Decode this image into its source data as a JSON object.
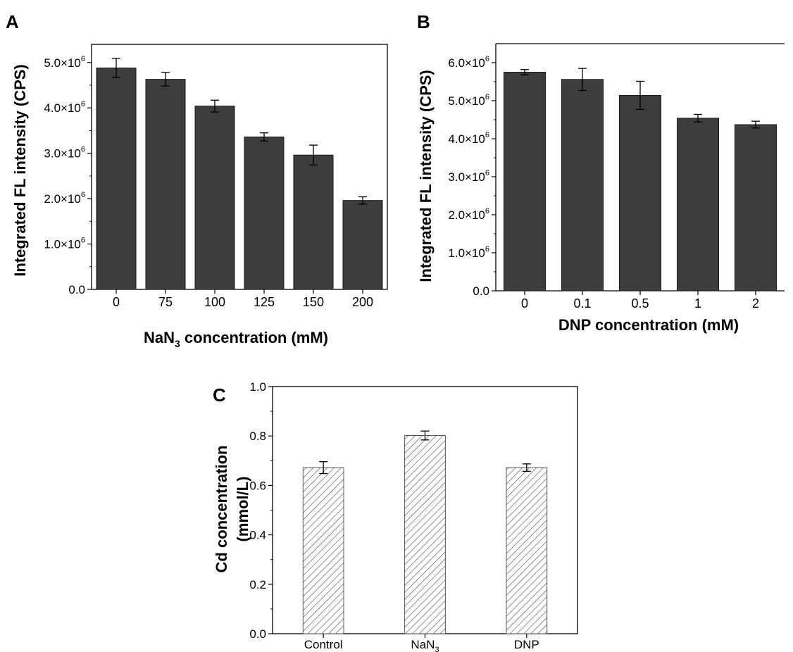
{
  "panels": [
    {
      "letter": "A",
      "chart_data": {
        "type": "bar",
        "categories": [
          "0",
          "75",
          "100",
          "125",
          "150",
          "200"
        ],
        "values": [
          4880000,
          4630000,
          4040000,
          3360000,
          2960000,
          1960000
        ],
        "errors": [
          210000,
          150000,
          130000,
          90000,
          220000,
          80000
        ],
        "xlabel_main": "NaN",
        "xlabel_sub": "3",
        "xlabel_rest": " concentration (mM)",
        "ylabel": "Integrated FL intensity (CPS)",
        "ylim": [
          0,
          5400000
        ],
        "yticks": [
          {
            "value": 0,
            "mant": "0.0",
            "sci": false
          },
          {
            "value": 1000000,
            "mant": "1.0×10",
            "exp": "6",
            "sci": true
          },
          {
            "value": 2000000,
            "mant": "2.0×10",
            "exp": "6",
            "sci": true
          },
          {
            "value": 3000000,
            "mant": "3.0×10",
            "exp": "6",
            "sci": true
          },
          {
            "value": 4000000,
            "mant": "4.0×10",
            "exp": "6",
            "sci": true
          },
          {
            "value": 5000000,
            "mant": "5.0×10",
            "exp": "6",
            "sci": true
          }
        ],
        "bar_color": "#3d3d3d",
        "grid": false
      }
    },
    {
      "letter": "B",
      "chart_data": {
        "type": "bar",
        "categories": [
          "0",
          "0.1",
          "0.5",
          "1",
          "2"
        ],
        "values": [
          5750000,
          5560000,
          5140000,
          4540000,
          4370000
        ],
        "errors": [
          70000,
          290000,
          370000,
          100000,
          90000
        ],
        "xlabel_main": "DNP concentration (mM)",
        "xlabel_sub": "",
        "xlabel_rest": "",
        "ylabel": "Integrated FL intensity (CPS)",
        "ylim": [
          0,
          6500000
        ],
        "yticks": [
          {
            "value": 0,
            "mant": "0.0",
            "sci": false
          },
          {
            "value": 1000000,
            "mant": "1.0×10",
            "exp": "6",
            "sci": true
          },
          {
            "value": 2000000,
            "mant": "2.0×10",
            "exp": "6",
            "sci": true
          },
          {
            "value": 3000000,
            "mant": "3.0×10",
            "exp": "6",
            "sci": true
          },
          {
            "value": 4000000,
            "mant": "4.0×10",
            "exp": "6",
            "sci": true
          },
          {
            "value": 5000000,
            "mant": "5.0×10",
            "exp": "6",
            "sci": true
          },
          {
            "value": 6000000,
            "mant": "6.0×10",
            "exp": "6",
            "sci": true
          }
        ],
        "bar_color": "#3d3d3d",
        "grid": false
      }
    },
    {
      "letter": "C",
      "chart_data": {
        "type": "bar",
        "categories": [
          {
            "main": "Control",
            "sub": ""
          },
          {
            "main": "NaN",
            "sub": "3"
          },
          {
            "main": "DNP",
            "sub": ""
          }
        ],
        "values": [
          0.672,
          0.802,
          0.672
        ],
        "errors": [
          0.024,
          0.018,
          0.015
        ],
        "ylabel_line1": "Cd concentration",
        "ylabel_line2": "(mmol/L)",
        "ylim": [
          0,
          1.0
        ],
        "yticks": [
          {
            "value": 0,
            "mant": "0.0",
            "sci": false
          },
          {
            "value": 0.2,
            "mant": "0.2",
            "sci": false
          },
          {
            "value": 0.4,
            "mant": "0.4",
            "sci": false
          },
          {
            "value": 0.6,
            "mant": "0.6",
            "sci": false
          },
          {
            "value": 0.8,
            "mant": "0.8",
            "sci": false
          },
          {
            "value": 1.0,
            "mant": "1.0",
            "sci": false
          }
        ],
        "bar_fill": "hatched",
        "grid": false
      }
    }
  ]
}
